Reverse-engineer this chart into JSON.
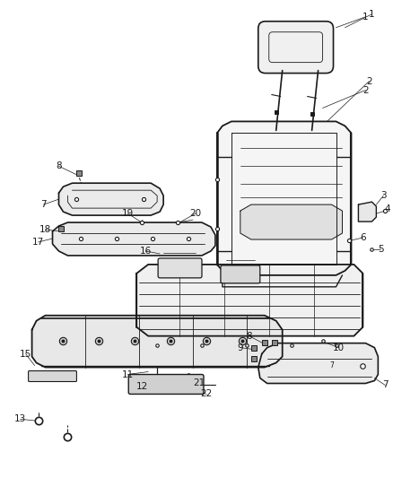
{
  "bg_color": "#ffffff",
  "line_color": "#1a1a1a",
  "fig_width": 4.39,
  "fig_height": 5.33,
  "dpi": 100,
  "font_size": 7.5
}
